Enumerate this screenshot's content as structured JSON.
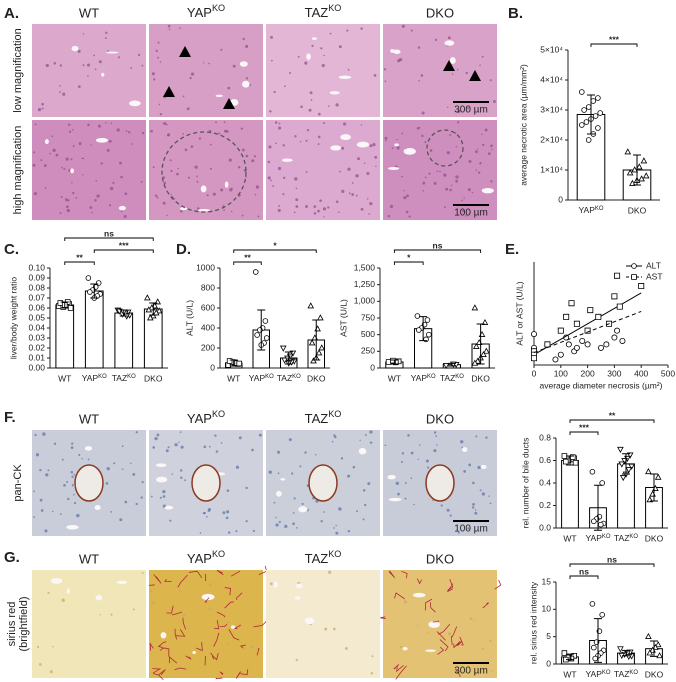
{
  "panel_labels": [
    "A.",
    "B.",
    "C.",
    "D.",
    "E.",
    "F.",
    "G."
  ],
  "micrographs": [
    {
      "columns": [
        "WT",
        [
          "YAP",
          "KO"
        ],
        [
          "TAZ",
          "KO"
        ],
        "DKO"
      ],
      "row_labels": [
        "low magnification",
        "high magnification"
      ],
      "scale_bars": [
        "300 µm",
        "100 µm"
      ]
    },
    {
      "columns": [
        "WT",
        [
          "YAP",
          "KO"
        ],
        [
          "TAZ",
          "KO"
        ],
        "DKO"
      ],
      "row_labels": [
        "pan-CK"
      ],
      "scale_bars": [
        "100 µm"
      ]
    },
    {
      "columns": [
        "WT",
        [
          "YAP",
          "KO"
        ],
        [
          "TAZ",
          "KO"
        ],
        "DKO"
      ],
      "row_labels": [
        [
          "sirius red",
          "(brightfield)"
        ]
      ],
      "scale_bars": [
        "300 µm"
      ]
    }
  ],
  "chart_data": [
    {
      "type": "bar",
      "ylabel": "average necrotic area (µm/mm²)",
      "categories": [
        [
          "YAP",
          "KO"
        ],
        "DKO"
      ],
      "values": [
        28500,
        10000
      ],
      "errors": [
        6500,
        5000
      ],
      "color": "#ffffff",
      "markers": [
        "circle",
        "triangle"
      ],
      "points": [
        [
          36000,
          34000,
          33000,
          31000,
          30000,
          29000,
          28000,
          27000,
          26000,
          25000,
          24000,
          22000,
          20000
        ],
        [
          16000,
          13000,
          11000,
          10000,
          9000,
          8000,
          7000,
          6500,
          5500
        ]
      ],
      "ylim": [
        0,
        50000
      ],
      "yticks": [
        0,
        {
          "value": 10000,
          "label": "1×10⁴"
        },
        {
          "value": 20000,
          "label": "2×10⁴"
        },
        {
          "value": 30000,
          "label": "3×10⁴"
        },
        {
          "value": 40000,
          "label": "4×10⁴"
        },
        {
          "value": 50000,
          "label": "5×10⁴"
        }
      ],
      "significance": [
        {
          "label": "***",
          "between": [
            0,
            1
          ]
        }
      ]
    },
    {
      "type": "bar",
      "ylabel": "liver/body weight ratio",
      "categories": [
        "WT",
        [
          "YAP",
          "KO"
        ],
        [
          "TAZ",
          "KO"
        ],
        "DKO"
      ],
      "values": [
        0.063,
        0.077,
        0.055,
        0.059
      ],
      "errors": [
        0.003,
        0.007,
        0.003,
        0.006
      ],
      "color": "#ffffff",
      "markers": [
        "square",
        "circle",
        "triangle-down",
        "triangle"
      ],
      "points": [
        [
          0.062,
          0.064,
          0.063,
          0.061,
          0.065,
          0.06,
          0.066,
          0.063
        ],
        [
          0.09,
          0.085,
          0.081,
          0.078,
          0.076,
          0.074,
          0.072,
          0.07
        ],
        [
          0.058,
          0.056,
          0.055,
          0.054,
          0.057,
          0.053,
          0.052,
          0.056
        ],
        [
          0.07,
          0.066,
          0.062,
          0.06,
          0.058,
          0.057,
          0.055,
          0.052,
          0.05
        ]
      ],
      "ylim": [
        0,
        0.1
      ],
      "yticks": [
        {
          "value": 0,
          "label": "0.00"
        },
        {
          "value": 0.01,
          "label": "0.01"
        },
        {
          "value": 0.02,
          "label": "0.02"
        },
        {
          "value": 0.03,
          "label": "0.03"
        },
        {
          "value": 0.04,
          "label": "0.04"
        },
        {
          "value": 0.05,
          "label": "0.05"
        },
        {
          "value": 0.06,
          "label": "0.06"
        },
        {
          "value": 0.07,
          "label": "0.07"
        },
        {
          "value": 0.08,
          "label": "0.08"
        },
        {
          "value": 0.09,
          "label": "0.09"
        },
        {
          "value": 0.1,
          "label": "0.10"
        }
      ],
      "significance": [
        {
          "label": "**",
          "between": [
            0,
            1
          ]
        },
        {
          "label": "***",
          "between": [
            1,
            3
          ]
        },
        {
          "label": "ns",
          "between": [
            0,
            3
          ]
        }
      ]
    },
    {
      "type": "bar",
      "ylabel": "ALT (U/L)",
      "categories": [
        "WT",
        [
          "YAP",
          "KO"
        ],
        [
          "TAZ",
          "KO"
        ],
        "DKO"
      ],
      "values": [
        50,
        380,
        100,
        280
      ],
      "errors": [
        30,
        200,
        60,
        200
      ],
      "color": "#ffffff",
      "markers": [
        "square",
        "circle",
        "triangle-down",
        "triangle"
      ],
      "points": [
        [
          30,
          40,
          50,
          60,
          70,
          45
        ],
        [
          960,
          470,
          400,
          380,
          330,
          300,
          250,
          230
        ],
        [
          200,
          150,
          120,
          100,
          80,
          70,
          60,
          50
        ],
        [
          620,
          500,
          390,
          300,
          250,
          200,
          150,
          100,
          70
        ]
      ],
      "ylim": [
        0,
        1000
      ],
      "yticks": [
        0,
        200,
        400,
        600,
        800,
        1000
      ],
      "significance": [
        {
          "label": "**",
          "between": [
            0,
            1
          ]
        },
        {
          "label": "*",
          "between": [
            0,
            3
          ]
        }
      ]
    },
    {
      "type": "bar",
      "ylabel": "AST (U/L)",
      "categories": [
        "WT",
        [
          "YAP",
          "KO"
        ],
        [
          "TAZ",
          "KO"
        ],
        "DKO"
      ],
      "values": [
        90,
        590,
        50,
        360
      ],
      "errors": [
        30,
        180,
        20,
        300
      ],
      "color": "#ffffff",
      "markers": [
        "square",
        "circle",
        "triangle-down",
        "triangle"
      ],
      "points": [
        [
          90,
          100,
          85,
          110
        ],
        [
          780,
          720,
          650,
          600,
          570,
          500,
          430
        ],
        [
          40,
          55,
          60
        ],
        [
          900,
          680,
          500,
          380,
          320,
          250,
          200,
          150,
          100,
          70
        ]
      ],
      "ylim": [
        0,
        1500
      ],
      "yticks": [
        0,
        250,
        500,
        750,
        {
          "value": 1000,
          "label": "1,000"
        },
        {
          "value": 1250,
          "label": "1,250"
        },
        {
          "value": 1500,
          "label": "1,500"
        }
      ],
      "significance": [
        {
          "label": "*",
          "between": [
            0,
            1
          ]
        },
        {
          "label": "ns",
          "between": [
            0,
            3
          ]
        }
      ]
    },
    {
      "type": "scatter",
      "xlabel": "average diameter necrosis (µm²)",
      "ylabel": "ALT or AST (U/L)",
      "xlim": [
        0,
        500
      ],
      "xticks": [
        0,
        100,
        200,
        300,
        400,
        500
      ],
      "ylim": [
        0,
        1500
      ],
      "legend": "top-right",
      "series": [
        {
          "name": "ALT",
          "marker": "circle",
          "color": "#000000",
          "dash": false,
          "x": [
            0,
            0,
            0,
            80,
            100,
            120,
            130,
            150,
            160,
            180,
            200,
            250,
            270,
            300,
            310,
            330,
            0
          ],
          "values": [
            250,
            100,
            150,
            80,
            150,
            400,
            300,
            200,
            250,
            350,
            300,
            250,
            300,
            400,
            500,
            350,
            450
          ],
          "trend_x": [
            0,
            400
          ],
          "trend_values": [
            150,
            1050
          ]
        },
        {
          "name": "AST",
          "marker": "square",
          "color": "#000000",
          "dash": true,
          "x": [
            0,
            0,
            0,
            50,
            100,
            120,
            140,
            160,
            200,
            210,
            240,
            280,
            300,
            310,
            320,
            400
          ],
          "values": [
            200,
            150,
            100,
            300,
            500,
            700,
            900,
            600,
            500,
            800,
            700,
            600,
            1000,
            1300,
            850,
            1150
          ],
          "trend_x": [
            0,
            400
          ],
          "trend_values": [
            180,
            780
          ]
        }
      ]
    },
    {
      "type": "bar",
      "ylabel": "rel. number of bile ducts",
      "categories": [
        "WT",
        [
          "YAP",
          "KO"
        ],
        [
          "TAZ",
          "KO"
        ],
        "DKO"
      ],
      "values": [
        0.6,
        0.18,
        0.57,
        0.36
      ],
      "errors": [
        0.04,
        0.2,
        0.09,
        0.12
      ],
      "color": "#ffffff",
      "markers": [
        "square",
        "circle",
        "triangle-down",
        "triangle"
      ],
      "points": [
        [
          0.64,
          0.62,
          0.61,
          0.6,
          0.59,
          0.58,
          0.63
        ],
        [
          0.5,
          0.4,
          0.1,
          0.08,
          0.06,
          0.04,
          0.03
        ],
        [
          0.7,
          0.65,
          0.62,
          0.6,
          0.57,
          0.55,
          0.52,
          0.48,
          0.45
        ],
        [
          0.5,
          0.45,
          0.35,
          0.3,
          0.25
        ]
      ],
      "ylim": [
        0,
        0.8
      ],
      "yticks": [
        {
          "value": 0,
          "label": "0.0"
        },
        0.2,
        0.4,
        0.6,
        0.8
      ],
      "significance": [
        {
          "label": "***",
          "between": [
            0,
            1
          ]
        },
        {
          "label": "**",
          "between": [
            0,
            3
          ]
        }
      ]
    },
    {
      "type": "bar",
      "ylabel": "rel. sirius red intensity",
      "categories": [
        "WT",
        [
          "YAP",
          "KO"
        ],
        [
          "TAZ",
          "KO"
        ],
        "DKO"
      ],
      "values": [
        1.3,
        4.3,
        2.0,
        2.8
      ],
      "errors": [
        0.5,
        4,
        0.5,
        1.4
      ],
      "color": "#ffffff",
      "markers": [
        "square",
        "circle",
        "triangle-down",
        "triangle"
      ],
      "points": [
        [
          2,
          1.5,
          1,
          1.2,
          0.8
        ],
        [
          11,
          9,
          6,
          4,
          3,
          2.5,
          2,
          1.5,
          1
        ],
        [
          2.8,
          2.2,
          2,
          1.8,
          1.6,
          1.5,
          1.4
        ],
        [
          5,
          3.5,
          3,
          2.5,
          2,
          1.5
        ]
      ],
      "ylim": [
        0,
        15
      ],
      "yticks": [
        0,
        5,
        10,
        15
      ],
      "significance": [
        {
          "label": "ns",
          "between": [
            0,
            1
          ]
        },
        {
          "label": "ns",
          "between": [
            0,
            3
          ]
        }
      ]
    }
  ]
}
